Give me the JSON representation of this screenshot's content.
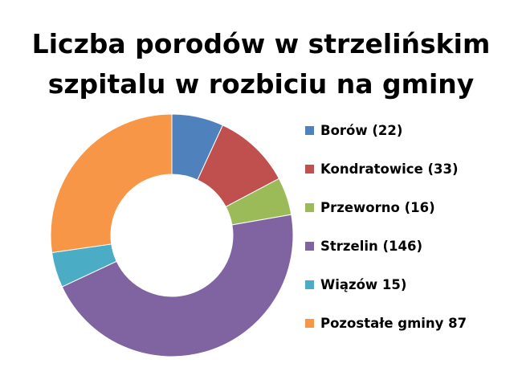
{
  "title_lines": [
    "Liczba porodów w strzelińskim",
    "szpitalu w rozbiciu na gminy"
  ],
  "chart_data": {
    "type": "pie",
    "variant": "doughnut",
    "title": "Liczba porodów w strzelińskim szpitalu w rozbiciu na gminy",
    "legend_position": "right",
    "categories": [
      "Borów",
      "Kondratowice",
      "Przeworno",
      "Strzelin",
      "Wiązów",
      "Pozostałe gminy"
    ],
    "values": [
      22,
      33,
      16,
      146,
      15,
      87
    ],
    "colors": [
      "#4F81BD",
      "#C0504D",
      "#9BBB59",
      "#8064A2",
      "#4BACC6",
      "#F79646"
    ],
    "legend": [
      "Borów (22)",
      "Kondratowice (33)",
      "Przeworno (16)",
      "Strzelin (146)",
      "Wiązów 15)",
      "Pozostałe gminy 87"
    ]
  }
}
